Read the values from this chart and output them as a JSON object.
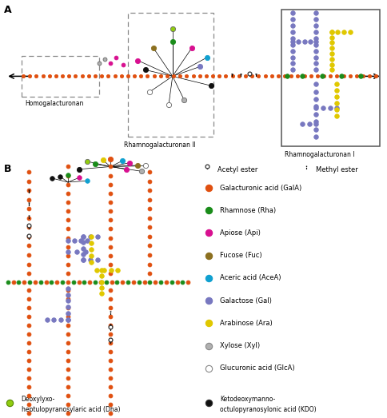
{
  "colors": {
    "galA": "#e05010",
    "rha": "#1a8c1a",
    "api": "#d81090",
    "fuc": "#8c7020",
    "aceA": "#10a0d0",
    "gal": "#7878c0",
    "ara": "#e0c800",
    "xyl": "#b0b0b0",
    "glcA": "#ffffff",
    "dha": "#90cc10",
    "kdo": "#101010"
  },
  "legend_items": [
    {
      "label": "Galacturonic acid (GalA)",
      "color": "#e05010",
      "edge": "#e05010"
    },
    {
      "label": "Rhamnose (Rha)",
      "color": "#1a8c1a",
      "edge": "#1a8c1a"
    },
    {
      "label": "Apiose (Api)",
      "color": "#d81090",
      "edge": "#d81090"
    },
    {
      "label": "Fucose (Fuc)",
      "color": "#8c7020",
      "edge": "#8c7020"
    },
    {
      "label": "Aceric acid (AceA)",
      "color": "#10a0d0",
      "edge": "#10a0d0"
    },
    {
      "label": "Galactose (Gal)",
      "color": "#7878c0",
      "edge": "#7878c0"
    },
    {
      "label": "Arabinose (Ara)",
      "color": "#e0c800",
      "edge": "#e0c800"
    },
    {
      "label": "Xylose (Xyl)",
      "color": "#b0b0b0",
      "edge": "#888888"
    },
    {
      "label": "Glucuronic acid (GlcA)",
      "color": "#ffffff",
      "edge": "#888888"
    }
  ]
}
